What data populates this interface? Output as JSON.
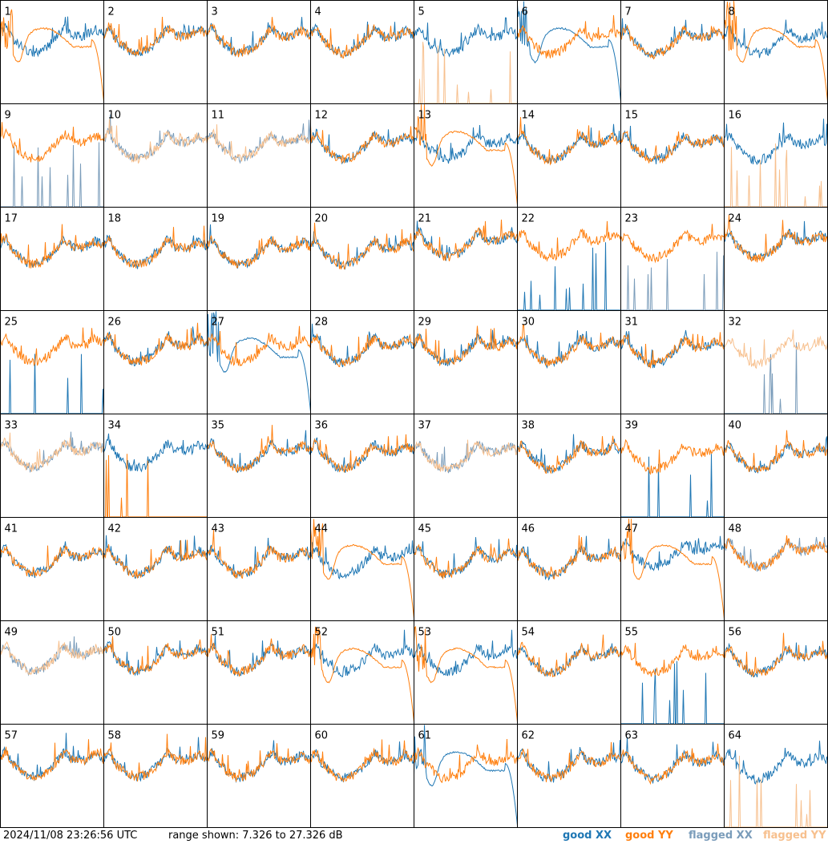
{
  "chart_data": {
    "type": "line",
    "panels": [
      {
        "label": "1",
        "traces": [
          {
            "pol": "XX",
            "status": "good",
            "shape": "noisy"
          },
          {
            "pol": "YY",
            "status": "good",
            "shape": "smooth_dip"
          }
        ]
      },
      {
        "label": "2",
        "traces": [
          {
            "pol": "XX",
            "status": "good",
            "shape": "noisy"
          },
          {
            "pol": "YY",
            "status": "good",
            "shape": "noisy"
          }
        ]
      },
      {
        "label": "3",
        "traces": [
          {
            "pol": "XX",
            "status": "good",
            "shape": "noisy"
          },
          {
            "pol": "YY",
            "status": "good",
            "shape": "noisy"
          }
        ]
      },
      {
        "label": "4",
        "traces": [
          {
            "pol": "XX",
            "status": "good",
            "shape": "noisy"
          },
          {
            "pol": "YY",
            "status": "good",
            "shape": "noisy"
          }
        ]
      },
      {
        "label": "5",
        "traces": [
          {
            "pol": "XX",
            "status": "good",
            "shape": "noisy"
          },
          {
            "pol": "YY",
            "status": "flagged",
            "shape": "spikes"
          }
        ]
      },
      {
        "label": "6",
        "traces": [
          {
            "pol": "XX",
            "status": "good",
            "shape": "smooth_dip"
          },
          {
            "pol": "YY",
            "status": "good",
            "shape": "noisy"
          }
        ]
      },
      {
        "label": "7",
        "traces": [
          {
            "pol": "XX",
            "status": "good",
            "shape": "noisy"
          },
          {
            "pol": "YY",
            "status": "good",
            "shape": "noisy"
          }
        ]
      },
      {
        "label": "8",
        "traces": [
          {
            "pol": "XX",
            "status": "good",
            "shape": "noisy"
          },
          {
            "pol": "YY",
            "status": "good",
            "shape": "smooth_dip"
          }
        ]
      },
      {
        "label": "9",
        "traces": [
          {
            "pol": "XX",
            "status": "flagged",
            "shape": "spikes"
          },
          {
            "pol": "YY",
            "status": "good",
            "shape": "noisy"
          }
        ]
      },
      {
        "label": "10",
        "traces": [
          {
            "pol": "XX",
            "status": "flagged",
            "shape": "noisy"
          },
          {
            "pol": "YY",
            "status": "flagged",
            "shape": "noisy"
          }
        ]
      },
      {
        "label": "11",
        "traces": [
          {
            "pol": "XX",
            "status": "flagged",
            "shape": "noisy"
          },
          {
            "pol": "YY",
            "status": "flagged",
            "shape": "noisy"
          }
        ]
      },
      {
        "label": "12",
        "traces": [
          {
            "pol": "XX",
            "status": "good",
            "shape": "noisy"
          },
          {
            "pol": "YY",
            "status": "good",
            "shape": "noisy"
          }
        ]
      },
      {
        "label": "13",
        "traces": [
          {
            "pol": "XX",
            "status": "good",
            "shape": "noisy"
          },
          {
            "pol": "YY",
            "status": "good",
            "shape": "smooth_dip"
          }
        ]
      },
      {
        "label": "14",
        "traces": [
          {
            "pol": "XX",
            "status": "good",
            "shape": "noisy"
          },
          {
            "pol": "YY",
            "status": "good",
            "shape": "noisy"
          }
        ]
      },
      {
        "label": "15",
        "traces": [
          {
            "pol": "XX",
            "status": "good",
            "shape": "noisy"
          },
          {
            "pol": "YY",
            "status": "good",
            "shape": "noisy"
          }
        ]
      },
      {
        "label": "16",
        "traces": [
          {
            "pol": "XX",
            "status": "good",
            "shape": "noisy"
          },
          {
            "pol": "YY",
            "status": "flagged",
            "shape": "spikes"
          }
        ]
      },
      {
        "label": "17",
        "traces": [
          {
            "pol": "XX",
            "status": "good",
            "shape": "noisy"
          },
          {
            "pol": "YY",
            "status": "good",
            "shape": "noisy"
          }
        ]
      },
      {
        "label": "18",
        "traces": [
          {
            "pol": "XX",
            "status": "good",
            "shape": "noisy"
          },
          {
            "pol": "YY",
            "status": "good",
            "shape": "noisy"
          }
        ]
      },
      {
        "label": "19",
        "traces": [
          {
            "pol": "XX",
            "status": "good",
            "shape": "noisy"
          },
          {
            "pol": "YY",
            "status": "good",
            "shape": "noisy"
          }
        ]
      },
      {
        "label": "20",
        "traces": [
          {
            "pol": "XX",
            "status": "good",
            "shape": "noisy"
          },
          {
            "pol": "YY",
            "status": "good",
            "shape": "noisy"
          }
        ]
      },
      {
        "label": "21",
        "traces": [
          {
            "pol": "XX",
            "status": "good",
            "shape": "noisy"
          },
          {
            "pol": "YY",
            "status": "good",
            "shape": "noisy"
          }
        ]
      },
      {
        "label": "22",
        "traces": [
          {
            "pol": "XX",
            "status": "good",
            "shape": "spikes"
          },
          {
            "pol": "YY",
            "status": "good",
            "shape": "noisy"
          }
        ]
      },
      {
        "label": "23",
        "traces": [
          {
            "pol": "XX",
            "status": "flagged",
            "shape": "spikes"
          },
          {
            "pol": "YY",
            "status": "good",
            "shape": "noisy"
          }
        ]
      },
      {
        "label": "24",
        "traces": [
          {
            "pol": "XX",
            "status": "good",
            "shape": "noisy"
          },
          {
            "pol": "YY",
            "status": "good",
            "shape": "noisy"
          }
        ]
      },
      {
        "label": "25",
        "traces": [
          {
            "pol": "XX",
            "status": "good",
            "shape": "spikes"
          },
          {
            "pol": "YY",
            "status": "good",
            "shape": "noisy"
          }
        ]
      },
      {
        "label": "26",
        "traces": [
          {
            "pol": "XX",
            "status": "good",
            "shape": "noisy"
          },
          {
            "pol": "YY",
            "status": "good",
            "shape": "noisy"
          }
        ]
      },
      {
        "label": "27",
        "traces": [
          {
            "pol": "XX",
            "status": "good",
            "shape": "smooth_dip"
          },
          {
            "pol": "YY",
            "status": "good",
            "shape": "noisy"
          }
        ]
      },
      {
        "label": "28",
        "traces": [
          {
            "pol": "XX",
            "status": "good",
            "shape": "noisy"
          },
          {
            "pol": "YY",
            "status": "good",
            "shape": "noisy"
          }
        ]
      },
      {
        "label": "29",
        "traces": [
          {
            "pol": "XX",
            "status": "good",
            "shape": "noisy"
          },
          {
            "pol": "YY",
            "status": "good",
            "shape": "noisy"
          }
        ]
      },
      {
        "label": "30",
        "traces": [
          {
            "pol": "XX",
            "status": "good",
            "shape": "noisy"
          },
          {
            "pol": "YY",
            "status": "good",
            "shape": "noisy"
          }
        ]
      },
      {
        "label": "31",
        "traces": [
          {
            "pol": "XX",
            "status": "good",
            "shape": "noisy"
          },
          {
            "pol": "YY",
            "status": "good",
            "shape": "noisy"
          }
        ]
      },
      {
        "label": "32",
        "traces": [
          {
            "pol": "XX",
            "status": "flagged",
            "shape": "spikes"
          },
          {
            "pol": "YY",
            "status": "flagged",
            "shape": "noisy"
          }
        ]
      },
      {
        "label": "33",
        "traces": [
          {
            "pol": "XX",
            "status": "flagged",
            "shape": "noisy"
          },
          {
            "pol": "YY",
            "status": "flagged",
            "shape": "noisy"
          }
        ]
      },
      {
        "label": "34",
        "traces": [
          {
            "pol": "XX",
            "status": "good",
            "shape": "noisy"
          },
          {
            "pol": "YY",
            "status": "good",
            "shape": "spikes"
          }
        ]
      },
      {
        "label": "35",
        "traces": [
          {
            "pol": "XX",
            "status": "good",
            "shape": "noisy"
          },
          {
            "pol": "YY",
            "status": "good",
            "shape": "noisy"
          }
        ]
      },
      {
        "label": "36",
        "traces": [
          {
            "pol": "XX",
            "status": "good",
            "shape": "noisy"
          },
          {
            "pol": "YY",
            "status": "good",
            "shape": "noisy"
          }
        ]
      },
      {
        "label": "37",
        "traces": [
          {
            "pol": "XX",
            "status": "flagged",
            "shape": "noisy"
          },
          {
            "pol": "YY",
            "status": "flagged",
            "shape": "noisy"
          }
        ]
      },
      {
        "label": "38",
        "traces": [
          {
            "pol": "XX",
            "status": "good",
            "shape": "noisy"
          },
          {
            "pol": "YY",
            "status": "good",
            "shape": "noisy"
          }
        ]
      },
      {
        "label": "39",
        "traces": [
          {
            "pol": "XX",
            "status": "good",
            "shape": "spikes"
          },
          {
            "pol": "YY",
            "status": "good",
            "shape": "noisy"
          }
        ]
      },
      {
        "label": "40",
        "traces": [
          {
            "pol": "XX",
            "status": "good",
            "shape": "noisy"
          },
          {
            "pol": "YY",
            "status": "good",
            "shape": "noisy"
          }
        ]
      },
      {
        "label": "41",
        "traces": [
          {
            "pol": "XX",
            "status": "good",
            "shape": "noisy"
          },
          {
            "pol": "YY",
            "status": "good",
            "shape": "noisy"
          }
        ]
      },
      {
        "label": "42",
        "traces": [
          {
            "pol": "XX",
            "status": "good",
            "shape": "noisy"
          },
          {
            "pol": "YY",
            "status": "good",
            "shape": "noisy"
          }
        ]
      },
      {
        "label": "43",
        "traces": [
          {
            "pol": "XX",
            "status": "good",
            "shape": "noisy"
          },
          {
            "pol": "YY",
            "status": "good",
            "shape": "noisy"
          }
        ]
      },
      {
        "label": "44",
        "traces": [
          {
            "pol": "XX",
            "status": "good",
            "shape": "noisy"
          },
          {
            "pol": "YY",
            "status": "good",
            "shape": "smooth_dip"
          }
        ]
      },
      {
        "label": "45",
        "traces": [
          {
            "pol": "XX",
            "status": "good",
            "shape": "noisy"
          },
          {
            "pol": "YY",
            "status": "good",
            "shape": "noisy"
          }
        ]
      },
      {
        "label": "46",
        "traces": [
          {
            "pol": "XX",
            "status": "good",
            "shape": "noisy"
          },
          {
            "pol": "YY",
            "status": "good",
            "shape": "noisy"
          }
        ]
      },
      {
        "label": "47",
        "traces": [
          {
            "pol": "XX",
            "status": "good",
            "shape": "noisy"
          },
          {
            "pol": "YY",
            "status": "good",
            "shape": "smooth_dip"
          }
        ]
      },
      {
        "label": "48",
        "traces": [
          {
            "pol": "XX",
            "status": "flagged",
            "shape": "noisy"
          },
          {
            "pol": "YY",
            "status": "good",
            "shape": "noisy"
          }
        ]
      },
      {
        "label": "49",
        "traces": [
          {
            "pol": "XX",
            "status": "flagged",
            "shape": "noisy"
          },
          {
            "pol": "YY",
            "status": "flagged",
            "shape": "noisy"
          }
        ]
      },
      {
        "label": "50",
        "traces": [
          {
            "pol": "XX",
            "status": "good",
            "shape": "noisy"
          },
          {
            "pol": "YY",
            "status": "good",
            "shape": "noisy"
          }
        ]
      },
      {
        "label": "51",
        "traces": [
          {
            "pol": "XX",
            "status": "good",
            "shape": "noisy"
          },
          {
            "pol": "YY",
            "status": "good",
            "shape": "noisy"
          }
        ]
      },
      {
        "label": "52",
        "traces": [
          {
            "pol": "XX",
            "status": "good",
            "shape": "noisy"
          },
          {
            "pol": "YY",
            "status": "good",
            "shape": "smooth_dip"
          }
        ]
      },
      {
        "label": "53",
        "traces": [
          {
            "pol": "XX",
            "status": "good",
            "shape": "noisy"
          },
          {
            "pol": "YY",
            "status": "good",
            "shape": "smooth_dip"
          }
        ]
      },
      {
        "label": "54",
        "traces": [
          {
            "pol": "XX",
            "status": "good",
            "shape": "noisy"
          },
          {
            "pol": "YY",
            "status": "good",
            "shape": "noisy"
          }
        ]
      },
      {
        "label": "55",
        "traces": [
          {
            "pol": "XX",
            "status": "good",
            "shape": "spikes"
          },
          {
            "pol": "YY",
            "status": "good",
            "shape": "noisy"
          }
        ]
      },
      {
        "label": "56",
        "traces": [
          {
            "pol": "XX",
            "status": "good",
            "shape": "noisy"
          },
          {
            "pol": "YY",
            "status": "good",
            "shape": "noisy"
          }
        ]
      },
      {
        "label": "57",
        "traces": [
          {
            "pol": "XX",
            "status": "good",
            "shape": "noisy"
          },
          {
            "pol": "YY",
            "status": "good",
            "shape": "noisy"
          }
        ]
      },
      {
        "label": "58",
        "traces": [
          {
            "pol": "XX",
            "status": "good",
            "shape": "noisy"
          },
          {
            "pol": "YY",
            "status": "good",
            "shape": "noisy"
          }
        ]
      },
      {
        "label": "59",
        "traces": [
          {
            "pol": "XX",
            "status": "good",
            "shape": "noisy"
          },
          {
            "pol": "YY",
            "status": "good",
            "shape": "noisy"
          }
        ]
      },
      {
        "label": "60",
        "traces": [
          {
            "pol": "XX",
            "status": "good",
            "shape": "noisy"
          },
          {
            "pol": "YY",
            "status": "good",
            "shape": "noisy"
          }
        ]
      },
      {
        "label": "61",
        "traces": [
          {
            "pol": "XX",
            "status": "good",
            "shape": "smooth_dip"
          },
          {
            "pol": "YY",
            "status": "good",
            "shape": "noisy"
          }
        ]
      },
      {
        "label": "62",
        "traces": [
          {
            "pol": "XX",
            "status": "good",
            "shape": "noisy"
          },
          {
            "pol": "YY",
            "status": "good",
            "shape": "noisy"
          }
        ]
      },
      {
        "label": "63",
        "traces": [
          {
            "pol": "XX",
            "status": "good",
            "shape": "noisy"
          },
          {
            "pol": "YY",
            "status": "good",
            "shape": "noisy"
          }
        ]
      },
      {
        "label": "64",
        "traces": [
          {
            "pol": "XX",
            "status": "good",
            "shape": "noisy"
          },
          {
            "pol": "YY",
            "status": "flagged",
            "shape": "spikes"
          }
        ]
      }
    ],
    "colors": {
      "good_xx": "#1f77b4",
      "good_yy": "#ff7f0e",
      "flagged_xx": "#7a9cba",
      "flagged_yy": "#f7c08e",
      "frame": "#000000"
    }
  },
  "footer": {
    "timestamp": "2024/11/08 23:26:56 UTC",
    "range_text": "range shown: 7.326 to 27.326 dB"
  },
  "legend": {
    "good_xx": "good XX",
    "good_yy": "good YY",
    "flagged_xx": "flagged XX",
    "flagged_yy": "flagged YY"
  }
}
